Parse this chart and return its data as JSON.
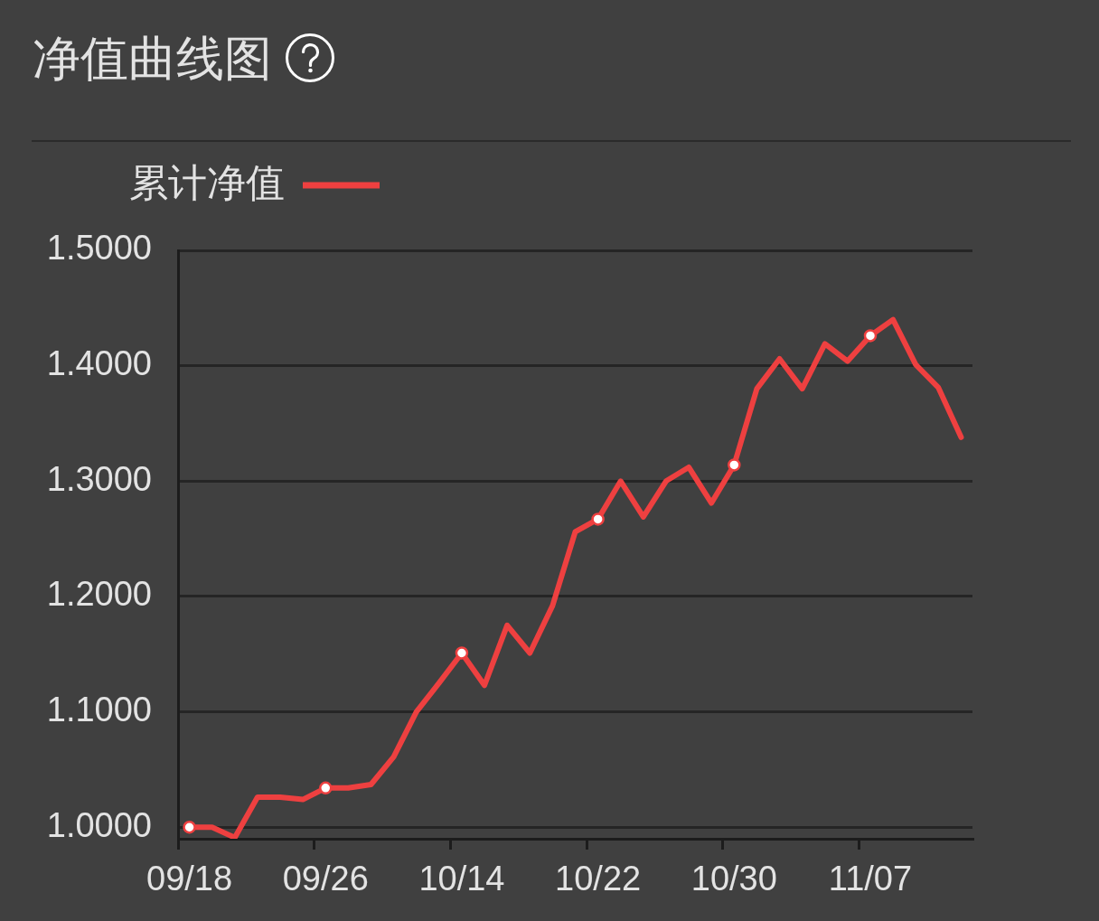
{
  "chart_data": {
    "type": "line",
    "title": "净值曲线图",
    "categories": [
      "09/18",
      null,
      null,
      null,
      null,
      null,
      "09/26",
      null,
      null,
      null,
      null,
      null,
      "10/14",
      null,
      null,
      null,
      null,
      null,
      "10/22",
      null,
      null,
      null,
      null,
      null,
      "10/30",
      null,
      null,
      null,
      null,
      null,
      "11/07",
      null,
      null,
      null,
      null
    ],
    "series": [
      {
        "name": "累计净值",
        "color": "#ee4040",
        "values": [
          1.0,
          1.0,
          0.991,
          1.026,
          1.026,
          1.024,
          1.034,
          1.034,
          1.037,
          1.061,
          1.1,
          1.125,
          1.151,
          1.123,
          1.175,
          1.151,
          1.192,
          1.256,
          1.267,
          1.3,
          1.269,
          1.3,
          1.312,
          1.281,
          1.314,
          1.38,
          1.406,
          1.38,
          1.419,
          1.404,
          1.426,
          1.44,
          1.401,
          1.381,
          1.338
        ]
      },
      {
        "type": "scatter",
        "color": "#ffffff",
        "x": [
          "09/18",
          "09/26",
          "10/14",
          "10/22",
          "10/30",
          "11/07"
        ],
        "values": [
          1.0,
          1.034,
          1.151,
          1.267,
          1.314,
          1.426
        ]
      }
    ],
    "ylim": [
      0.99,
      1.5
    ],
    "yticks": [
      {
        "value": 1,
        "label": "1.0000"
      },
      {
        "value": 1.1,
        "label": "1.1000"
      },
      {
        "value": 1.2,
        "label": "1.2000"
      },
      {
        "value": 1.3,
        "label": "1.3000"
      },
      {
        "value": 1.4,
        "label": "1.4000"
      },
      {
        "value": 1.5,
        "label": "1.5000"
      }
    ],
    "grid": "y",
    "legend": "top left"
  }
}
